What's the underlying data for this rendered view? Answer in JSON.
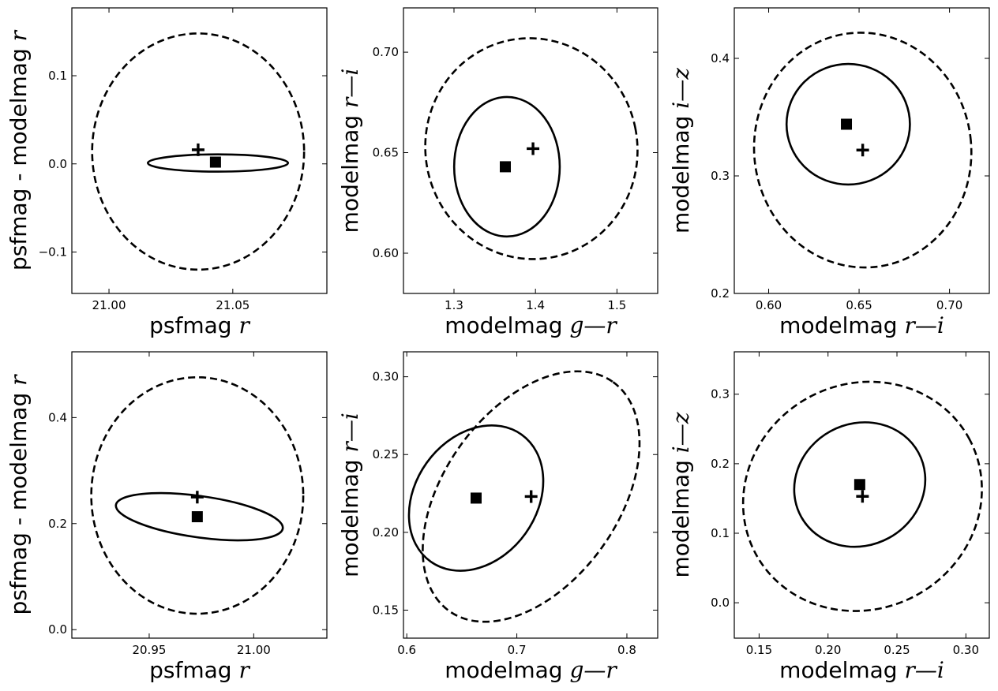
{
  "chart_data": [
    {
      "type": "scatter",
      "xlabel": "psfmag",
      "xlabel_math": "r",
      "ylabel": "psfmag - modelmag",
      "ylabel_math": "r",
      "xlim": [
        20.985,
        21.088
      ],
      "ylim": [
        -0.147,
        0.177
      ],
      "xticks": [
        21.0,
        21.05
      ],
      "xticklabels": [
        "21.00",
        "21.05"
      ],
      "yticks": [
        -0.1,
        0.0,
        0.1
      ],
      "yticklabels": [
        "−0.1",
        "0.0",
        "0.1"
      ],
      "ellipses": [
        {
          "style": "dashed",
          "center": [
            21.036,
            0.014
          ],
          "rx": 0.0428,
          "ry": 0.134,
          "angle": 0
        },
        {
          "style": "solid",
          "center": [
            21.044,
            0.001
          ],
          "rx": 0.0283,
          "ry": 0.0098,
          "angle": 0
        }
      ],
      "points": [
        {
          "marker": "square",
          "x": 21.043,
          "y": 0.002
        },
        {
          "marker": "plus",
          "x": 21.036,
          "y": 0.016
        }
      ]
    },
    {
      "type": "scatter",
      "xlabel": "modelmag",
      "xlabel_math": "g—r",
      "ylabel": "modelmag",
      "ylabel_math": "r—i",
      "xlim": [
        1.238,
        1.55
      ],
      "ylim": [
        0.58,
        0.722
      ],
      "xticks": [
        1.3,
        1.4,
        1.5
      ],
      "xticklabels": [
        "1.3",
        "1.4",
        "1.5"
      ],
      "yticks": [
        0.6,
        0.65,
        0.7
      ],
      "yticklabels": [
        "0.60",
        "0.65",
        "0.70"
      ],
      "ellipses": [
        {
          "style": "dashed",
          "center": [
            1.395,
            0.652
          ],
          "rx": 0.13,
          "ry": 0.055,
          "angle": 0.2
        },
        {
          "style": "solid",
          "center": [
            1.365,
            0.643
          ],
          "rx": 0.0648,
          "ry": 0.0347,
          "angle": 0
        }
      ],
      "points": [
        {
          "marker": "square",
          "x": 1.363,
          "y": 0.643
        },
        {
          "marker": "plus",
          "x": 1.397,
          "y": 0.652
        }
      ]
    },
    {
      "type": "scatter",
      "xlabel": "modelmag",
      "xlabel_math": "r—i",
      "ylabel": "modelmag",
      "ylabel_math": "i—z",
      "xlim": [
        0.581,
        0.722
      ],
      "ylim": [
        0.2,
        0.443
      ],
      "xticks": [
        0.6,
        0.65,
        0.7
      ],
      "xticklabels": [
        "0.60",
        "0.65",
        "0.70"
      ],
      "yticks": [
        0.2,
        0.3,
        0.4
      ],
      "yticklabels": [
        "0.2",
        "0.3",
        "0.4"
      ],
      "ellipses": [
        {
          "style": "dashed",
          "center": [
            0.652,
            0.322
          ],
          "rx": 0.06,
          "ry": 0.1,
          "angle": 0.12
        },
        {
          "style": "solid",
          "center": [
            0.644,
            0.344
          ],
          "rx": 0.0341,
          "ry": 0.0513,
          "angle": 0
        }
      ],
      "points": [
        {
          "marker": "square",
          "x": 0.643,
          "y": 0.344
        },
        {
          "marker": "plus",
          "x": 0.652,
          "y": 0.322
        }
      ]
    },
    {
      "type": "scatter",
      "xlabel": "psfmag",
      "xlabel_math": "r",
      "ylabel": "psfmag - modelmag",
      "ylabel_math": "r",
      "xlim": [
        20.913,
        21.035
      ],
      "ylim": [
        -0.016,
        0.524
      ],
      "xticks": [
        20.95,
        21.0
      ],
      "xticklabels": [
        "20.95",
        "21.00"
      ],
      "yticks": [
        0.0,
        0.2,
        0.4
      ],
      "yticklabels": [
        "0.0",
        "0.2",
        "0.4"
      ],
      "ellipses": [
        {
          "style": "dashed",
          "center": [
            20.973,
            0.253
          ],
          "rx": 0.0507,
          "ry": 0.223,
          "angle": 0
        },
        {
          "style": "solid",
          "center": [
            20.974,
            0.213
          ],
          "rx": 0.0403,
          "ry": 0.039,
          "angle": -0.14
        }
      ],
      "points": [
        {
          "marker": "square",
          "x": 20.973,
          "y": 0.213
        },
        {
          "marker": "plus",
          "x": 20.973,
          "y": 0.25
        }
      ]
    },
    {
      "type": "scatter",
      "xlabel": "modelmag",
      "xlabel_math": "g—r",
      "ylabel": "modelmag",
      "ylabel_math": "r—i",
      "xlim": [
        0.597,
        0.828
      ],
      "ylim": [
        0.132,
        0.316
      ],
      "xticks": [
        0.6,
        0.7,
        0.8
      ],
      "xticklabels": [
        "0.6",
        "0.7",
        "0.8"
      ],
      "yticks": [
        0.15,
        0.2,
        0.25,
        0.3
      ],
      "yticklabels": [
        "0.15",
        "0.20",
        "0.25",
        "0.30"
      ],
      "ellipses": [
        {
          "style": "dashed",
          "center": [
            0.713,
            0.223
          ],
          "rx": 0.128,
          "ry": 0.056,
          "angle": 0.95
        },
        {
          "style": "solid",
          "center": [
            0.663,
            0.222
          ],
          "rx": 0.071,
          "ry": 0.039,
          "angle": 0.95
        }
      ],
      "points": [
        {
          "marker": "square",
          "x": 0.663,
          "y": 0.222
        },
        {
          "marker": "plus",
          "x": 0.713,
          "y": 0.223
        }
      ]
    },
    {
      "type": "scatter",
      "xlabel": "modelmag",
      "xlabel_math": "r—i",
      "ylabel": "modelmag",
      "ylabel_math": "i—z",
      "xlim": [
        0.132,
        0.317
      ],
      "ylim": [
        -0.051,
        0.361
      ],
      "xticks": [
        0.15,
        0.2,
        0.25,
        0.3
      ],
      "xticklabels": [
        "0.15",
        "0.20",
        "0.25",
        "0.30"
      ],
      "yticks": [
        0.0,
        0.1,
        0.2,
        0.3
      ],
      "yticklabels": [
        "0.0",
        "0.1",
        "0.2",
        "0.3"
      ],
      "ellipses": [
        {
          "style": "dashed",
          "center": [
            0.225,
            0.153
          ],
          "rx": 0.088,
          "ry": 0.162,
          "angle": 0.5
        },
        {
          "style": "solid",
          "center": [
            0.223,
            0.17
          ],
          "rx": 0.0485,
          "ry": 0.0875,
          "angle": 0.5
        }
      ],
      "points": [
        {
          "marker": "square",
          "x": 0.223,
          "y": 0.17
        },
        {
          "marker": "plus",
          "x": 0.225,
          "y": 0.153
        }
      ]
    }
  ]
}
